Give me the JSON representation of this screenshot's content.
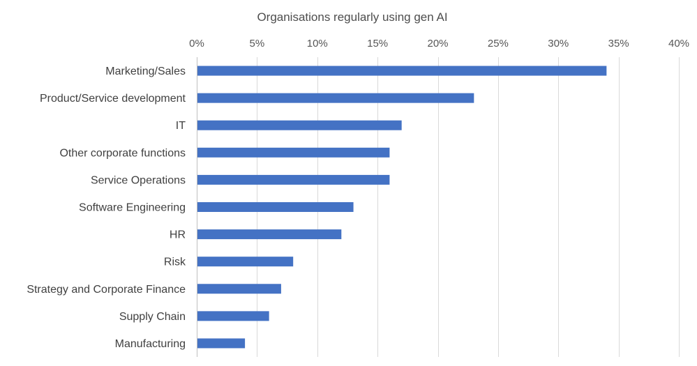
{
  "chart_data": {
    "type": "bar",
    "orientation": "horizontal",
    "title": "Organisations regularly using gen AI",
    "xlabel": "",
    "ylabel": "",
    "categories": [
      "Marketing/Sales",
      "Product/Service development",
      "IT",
      "Other corporate functions",
      "Service Operations",
      "Software Engineering",
      "HR",
      "Risk",
      "Strategy and Corporate Finance",
      "Supply Chain",
      "Manufacturing"
    ],
    "values": [
      34,
      23,
      17,
      16,
      16,
      13,
      12,
      8,
      7,
      6,
      4
    ],
    "xlim": [
      0,
      40
    ],
    "x_ticks": [
      0,
      5,
      10,
      15,
      20,
      25,
      30,
      35,
      40
    ],
    "x_tick_labels": [
      "0%",
      "5%",
      "10%",
      "15%",
      "20%",
      "25%",
      "30%",
      "35%",
      "40%"
    ],
    "x_axis_position": "top",
    "grid": true,
    "legend": "none",
    "bar_color": "#4472c4",
    "grid_color": "#d9d9d9"
  }
}
